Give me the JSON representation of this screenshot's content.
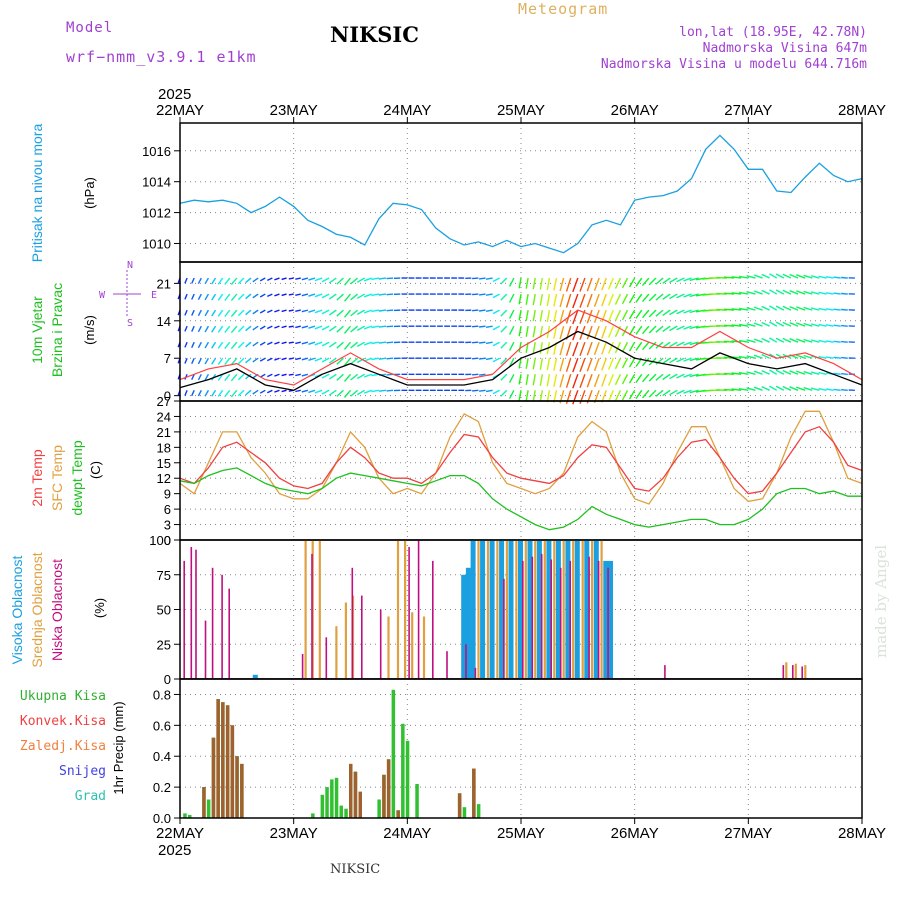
{
  "header": {
    "model_label": "Model",
    "model_name": "wrf−nmm_v3.9.1 e1km",
    "station": "NIKSIC",
    "title": "Meteogram",
    "lonlat": "lon,lat (18.95E, 42.78N)",
    "elevation": "Nadmorska Visina 647m",
    "elevation_model": "Nadmorska Visina u modelu 644.716m"
  },
  "footer": {
    "station": "NIKSIC",
    "signature": "made by Angel"
  },
  "colors": {
    "pressure": "#1aa0e0",
    "temp2m": "#f04040",
    "sfc": "#e0a040",
    "dewpt": "#20c020",
    "windspeed": "#000000",
    "gust": "#ff4040",
    "high_cloud": "#1aa0e0",
    "mid_cloud": "#e0a040",
    "low_cloud": "#c01080",
    "total_precip": "#30c030",
    "convective": "#a06030"
  },
  "chart_data": {
    "type": "meteogram",
    "time_axis": {
      "top_year": "2025",
      "bottom_year": "2025",
      "ticks": [
        "22MAY",
        "23MAY",
        "24MAY",
        "25MAY",
        "26MAY",
        "27MAY",
        "28MAY"
      ],
      "range_hours": [
        0,
        144
      ]
    },
    "pressure": {
      "ylabel": "Pritisak na nivou mora",
      "unit": "(hPa)",
      "ylim": [
        1008.8,
        1017.8
      ],
      "yticks": [
        1010,
        1012,
        1014,
        1016
      ],
      "x": [
        0,
        3,
        6,
        9,
        12,
        15,
        18,
        21,
        24,
        27,
        30,
        33,
        36,
        39,
        42,
        45,
        48,
        51,
        54,
        57,
        60,
        63,
        66,
        69,
        72,
        75,
        78,
        81,
        84,
        87,
        90,
        93,
        96,
        99,
        102,
        105,
        108,
        111,
        114,
        117,
        120,
        123,
        126,
        129,
        132,
        135,
        138,
        141,
        144
      ],
      "values": [
        1012.6,
        1012.8,
        1012.7,
        1012.8,
        1012.6,
        1012.0,
        1012.4,
        1013.0,
        1012.4,
        1011.5,
        1011.1,
        1010.6,
        1010.4,
        1009.9,
        1011.6,
        1012.6,
        1012.5,
        1012.2,
        1011.0,
        1010.3,
        1009.9,
        1010.1,
        1009.8,
        1010.2,
        1009.8,
        1010.0,
        1009.7,
        1009.4,
        1010.0,
        1011.2,
        1011.5,
        1011.2,
        1012.8,
        1013.0,
        1013.1,
        1013.4,
        1014.2,
        1016.1,
        1017.0,
        1016.1,
        1014.8,
        1014.8,
        1013.4,
        1013.3,
        1014.3,
        1015.2,
        1014.4,
        1014.0,
        1014.2
      ]
    },
    "wind": {
      "ylabel_1": "10m Vjetar",
      "ylabel_2": "Brzina i Pravac",
      "unit": "(m/s)",
      "compass": {
        "n": "N",
        "s": "S",
        "e": "E",
        "w": "W"
      },
      "ylim": [
        -1,
        25
      ],
      "yticks": [
        0,
        7,
        14,
        21
      ],
      "x": [
        0,
        6,
        12,
        18,
        24,
        30,
        36,
        42,
        48,
        54,
        60,
        66,
        72,
        78,
        84,
        90,
        96,
        102,
        108,
        114,
        120,
        126,
        132,
        138,
        144
      ],
      "speed": [
        1.5,
        3,
        5,
        2,
        1,
        4,
        6,
        4,
        2,
        2,
        2,
        3,
        7,
        9,
        12,
        10,
        7,
        6,
        5,
        8,
        6,
        5,
        6,
        4,
        2
      ],
      "gust": [
        3,
        5,
        6,
        3,
        2,
        5,
        8,
        5,
        3,
        3,
        3,
        4,
        9,
        12,
        16,
        14,
        11,
        9,
        9,
        12,
        9,
        7,
        8,
        6,
        3
      ],
      "direction": [
        200,
        210,
        220,
        240,
        260,
        250,
        220,
        260,
        270,
        270,
        270,
        260,
        190,
        190,
        200,
        200,
        210,
        230,
        250,
        270,
        280,
        300,
        290,
        280,
        270
      ],
      "bar_levels": [
        1,
        4,
        7,
        10,
        13,
        16,
        19,
        22
      ]
    },
    "temperature": {
      "ylabel_1": "2m Temp",
      "ylabel_2": "SFC Temp",
      "ylabel_3": "dewpt Temp",
      "unit": "(C)",
      "ylim": [
        0,
        27
      ],
      "yticks": [
        0,
        3,
        6,
        9,
        12,
        15,
        18,
        21,
        24,
        27
      ],
      "x": [
        0,
        3,
        6,
        9,
        12,
        15,
        18,
        21,
        24,
        27,
        30,
        33,
        36,
        39,
        42,
        45,
        48,
        51,
        54,
        57,
        60,
        63,
        66,
        69,
        72,
        75,
        78,
        81,
        84,
        87,
        90,
        93,
        96,
        99,
        102,
        105,
        108,
        111,
        114,
        117,
        120,
        123,
        126,
        129,
        132,
        135,
        138,
        141,
        144
      ],
      "t2m": [
        12,
        11,
        14,
        18,
        19,
        17,
        15,
        12,
        10.5,
        10,
        11,
        15,
        18,
        16,
        13,
        12,
        12,
        11,
        13,
        17,
        20.5,
        20,
        16,
        13,
        12,
        11.5,
        11,
        12.5,
        16,
        18.5,
        18,
        14,
        10,
        9.5,
        12,
        16,
        19,
        19.5,
        16,
        12,
        9,
        9.5,
        13,
        17,
        21,
        22,
        19,
        14.5,
        13.5
      ],
      "sfc": [
        11,
        9,
        15,
        21,
        21,
        16,
        13,
        9,
        8,
        8,
        10,
        15,
        21,
        18,
        12,
        9,
        10,
        9,
        13,
        20,
        24.5,
        23,
        15,
        11,
        10,
        9,
        10,
        13,
        20,
        23,
        21,
        13,
        8,
        7,
        11,
        17,
        22,
        22,
        16,
        10,
        7.5,
        8,
        13,
        20,
        25,
        25,
        19,
        12,
        11
      ],
      "dewpt": [
        11.5,
        11,
        12.5,
        13.5,
        14,
        12.5,
        11,
        10,
        9.5,
        9,
        10,
        12,
        13,
        12.5,
        12,
        11.5,
        11,
        10.5,
        11.5,
        12.5,
        12.5,
        11,
        8,
        6,
        4.5,
        3,
        2,
        2.5,
        4,
        6.5,
        5,
        4,
        3,
        2.5,
        3,
        3.5,
        4,
        4,
        3,
        3,
        4,
        6,
        9,
        10,
        10,
        9,
        9.5,
        8.5,
        8.5
      ]
    },
    "clouds": {
      "ylabel_1": "Visoka Oblacnost",
      "ylabel_2": "Srednja Oblacnost",
      "ylabel_3": "Niska Oblacnost",
      "unit": "(%)",
      "ylim": [
        0,
        100
      ],
      "yticks": [
        0,
        25,
        50,
        75,
        100
      ],
      "low": [
        [
          0.5,
          85
        ],
        [
          2,
          95
        ],
        [
          3,
          93
        ],
        [
          5,
          42
        ],
        [
          6.5,
          80
        ],
        [
          8.5,
          75
        ],
        [
          10,
          65
        ],
        [
          25.5,
          18
        ],
        [
          27.5,
          90
        ],
        [
          30.5,
          30
        ],
        [
          36,
          80
        ],
        [
          38,
          60
        ],
        [
          42,
          50
        ],
        [
          48,
          95
        ],
        [
          50,
          100
        ],
        [
          53,
          85
        ],
        [
          56,
          20
        ],
        [
          60,
          25
        ],
        [
          62,
          8
        ],
        [
          68,
          72
        ],
        [
          72,
          85
        ],
        [
          74,
          88
        ],
        [
          76,
          90
        ],
        [
          78,
          86
        ],
        [
          80,
          80
        ],
        [
          82,
          85
        ],
        [
          86,
          88
        ],
        [
          88,
          85
        ],
        [
          90,
          80
        ],
        [
          102,
          10
        ],
        [
          127,
          10
        ],
        [
          129,
          10
        ],
        [
          131,
          9
        ]
      ],
      "mid": [
        [
          26.5,
          100
        ],
        [
          28,
          100
        ],
        [
          29.5,
          100
        ],
        [
          33,
          38
        ],
        [
          35,
          55
        ],
        [
          36.5,
          60
        ],
        [
          44,
          45
        ],
        [
          46,
          100
        ],
        [
          47.5,
          100
        ],
        [
          49,
          48
        ],
        [
          51.5,
          45
        ],
        [
          63,
          100
        ],
        [
          65,
          100
        ],
        [
          67,
          100
        ],
        [
          69,
          100
        ],
        [
          71,
          100
        ],
        [
          73,
          100
        ],
        [
          75,
          100
        ],
        [
          77,
          100
        ],
        [
          79,
          100
        ],
        [
          81,
          100
        ],
        [
          83,
          100
        ],
        [
          85,
          100
        ],
        [
          87,
          100
        ],
        [
          89,
          100
        ],
        [
          128,
          12
        ],
        [
          130,
          11
        ],
        [
          132,
          10
        ]
      ],
      "high": [
        [
          60,
          75
        ],
        [
          61,
          80
        ],
        [
          62,
          100
        ],
        [
          64,
          100
        ],
        [
          66,
          100
        ],
        [
          68,
          100
        ],
        [
          70,
          100
        ],
        [
          72,
          100
        ],
        [
          74,
          100
        ],
        [
          76,
          100
        ],
        [
          78,
          100
        ],
        [
          80,
          100
        ],
        [
          82,
          100
        ],
        [
          84,
          100
        ],
        [
          86,
          100
        ],
        [
          88,
          100
        ],
        [
          90,
          85
        ],
        [
          91,
          85
        ],
        [
          16,
          3
        ]
      ]
    },
    "precip": {
      "label_total": "Ukupna Kisa",
      "label_conv": "Konvek.Kisa",
      "label_frozen": "Zaledj.Kisa",
      "label_snow": "Snijeg",
      "label_graupel": "Grad",
      "ylabel": "1hr Precip (mm)",
      "ylim": [
        0,
        0.9
      ],
      "yticks": [
        0,
        0.2,
        0.4,
        0.6,
        0.8
      ],
      "total": [
        [
          1,
          0.03
        ],
        [
          2,
          0.02
        ],
        [
          5,
          0.2
        ],
        [
          6,
          0.12
        ],
        [
          7,
          0.52
        ],
        [
          8,
          0.77
        ],
        [
          9,
          0.75
        ],
        [
          10,
          0.73
        ],
        [
          11,
          0.6
        ],
        [
          12,
          0.4
        ],
        [
          13,
          0.35
        ],
        [
          28,
          0.03
        ],
        [
          30,
          0.15
        ],
        [
          31,
          0.2
        ],
        [
          32,
          0.25
        ],
        [
          33,
          0.26
        ],
        [
          34,
          0.08
        ],
        [
          35,
          0.06
        ],
        [
          36,
          0.35
        ],
        [
          37,
          0.3
        ],
        [
          38,
          0.17
        ],
        [
          42,
          0.12
        ],
        [
          43,
          0.28
        ],
        [
          44,
          0.38
        ],
        [
          45,
          0.83
        ],
        [
          46,
          0.05
        ],
        [
          47,
          0.61
        ],
        [
          48,
          0.5
        ],
        [
          50,
          0.22
        ],
        [
          59,
          0.16
        ],
        [
          60,
          0.07
        ],
        [
          62,
          0.32
        ],
        [
          63,
          0.09
        ]
      ],
      "convective": [
        [
          5,
          0.2
        ],
        [
          7,
          0.52
        ],
        [
          8,
          0.77
        ],
        [
          9,
          0.75
        ],
        [
          10,
          0.73
        ],
        [
          11,
          0.6
        ],
        [
          12,
          0.4
        ],
        [
          13,
          0.35
        ],
        [
          36,
          0.35
        ],
        [
          37,
          0.3
        ],
        [
          38,
          0.17
        ],
        [
          43,
          0.28
        ],
        [
          44,
          0.38
        ],
        [
          46,
          0.05
        ],
        [
          59,
          0.16
        ],
        [
          62,
          0.32
        ]
      ]
    }
  }
}
